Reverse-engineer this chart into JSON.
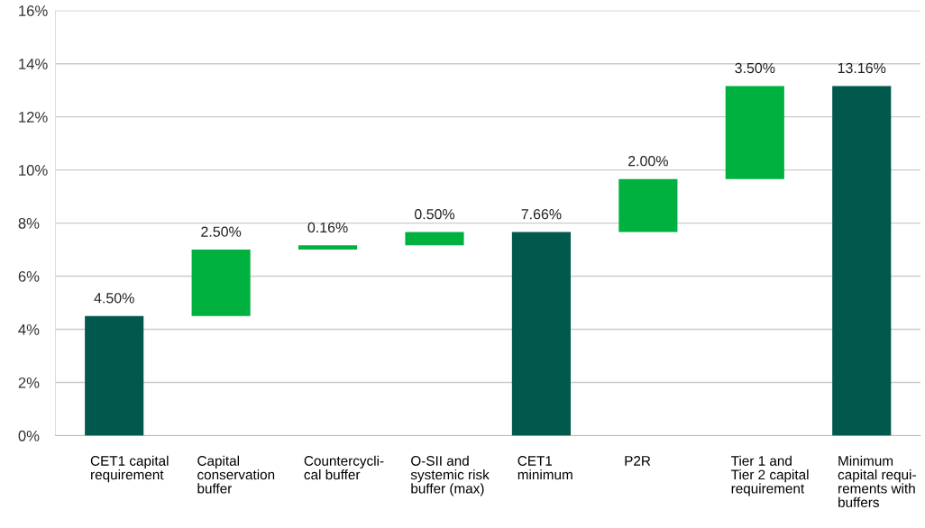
{
  "chart_data": {
    "type": "bar",
    "categories": [
      "CET1 capital\nrequirement",
      "Capital\nconservation\nbuffer",
      "Countercycli-\ncal buffer",
      "O-SII and\nsystemic risk\nbuffer (max)",
      "CET1\nminimum",
      "P2R",
      "Tier 1 and\nTier 2 capital\nrequirement",
      "Minimum\ncapital requi-\nrements with\nbuffers"
    ],
    "values": [
      4.5,
      2.5,
      0.16,
      0.5,
      7.66,
      2.0,
      3.5,
      13.16
    ],
    "base": [
      0,
      4.5,
      7.0,
      7.16,
      0,
      7.66,
      9.66,
      0
    ],
    "colors": [
      "#00594c",
      "#00b140",
      "#00b140",
      "#00b140",
      "#00594c",
      "#00b140",
      "#00b140",
      "#00594c"
    ],
    "value_labels": [
      "4.50%",
      "2.50%",
      "0.16%",
      "0.50%",
      "7.66%",
      "2.00%",
      "3.50%",
      "13.16%"
    ],
    "ylim": [
      0,
      16
    ],
    "yticks": [
      {
        "value": 0,
        "label": "0%"
      },
      {
        "value": 2,
        "label": "2%"
      },
      {
        "value": 4,
        "label": "4%"
      },
      {
        "value": 6,
        "label": "6%"
      },
      {
        "value": 8,
        "label": "8%"
      },
      {
        "value": 10,
        "label": "10%"
      },
      {
        "value": 12,
        "label": "12%"
      },
      {
        "value": 14,
        "label": "14%"
      },
      {
        "value": 16,
        "label": "16%"
      }
    ],
    "grid": "y",
    "legend": false
  }
}
